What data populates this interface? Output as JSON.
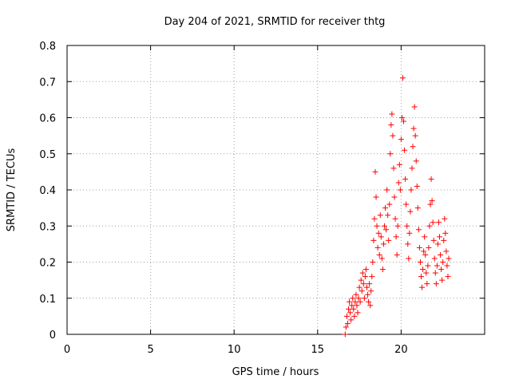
{
  "chart_data": {
    "type": "scatter",
    "title": "Day 204 of 2021, SRMTID for receiver thtg",
    "xlabel": "GPS time / hours",
    "ylabel": "SRMTID / TECUs",
    "xlim": [
      0,
      25
    ],
    "ylim": [
      0,
      0.8
    ],
    "grid": true,
    "marker": "+",
    "color": "#ff0000",
    "x_ticks": [
      0,
      5,
      10,
      15,
      20
    ],
    "x_tick_labels": [
      "0",
      "5",
      "10",
      "15",
      "20"
    ],
    "y_ticks": [
      0,
      0.1,
      0.2,
      0.3,
      0.4,
      0.5,
      0.6,
      0.7,
      0.8
    ],
    "y_tick_labels": [
      "0",
      "0.1",
      "0.2",
      "0.3",
      "0.4",
      "0.5",
      "0.6",
      "0.7",
      "0.8"
    ],
    "series": [
      {
        "name": "SRMTID",
        "points": [
          [
            16.65,
            0.0
          ],
          [
            16.7,
            0.02
          ],
          [
            16.75,
            0.05
          ],
          [
            16.8,
            0.03
          ],
          [
            16.85,
            0.07
          ],
          [
            16.9,
            0.09
          ],
          [
            16.95,
            0.06
          ],
          [
            17.0,
            0.04
          ],
          [
            17.05,
            0.08
          ],
          [
            17.1,
            0.1
          ],
          [
            17.15,
            0.07
          ],
          [
            17.2,
            0.05
          ],
          [
            17.25,
            0.09
          ],
          [
            17.3,
            0.11
          ],
          [
            17.35,
            0.08
          ],
          [
            17.4,
            0.06
          ],
          [
            17.45,
            0.1
          ],
          [
            17.5,
            0.13
          ],
          [
            17.55,
            0.09
          ],
          [
            17.6,
            0.15
          ],
          [
            17.65,
            0.12
          ],
          [
            17.7,
            0.17
          ],
          [
            17.75,
            0.14
          ],
          [
            17.8,
            0.1
          ],
          [
            17.85,
            0.16
          ],
          [
            17.9,
            0.18
          ],
          [
            17.95,
            0.13
          ],
          [
            18.0,
            0.11
          ],
          [
            18.05,
            0.09
          ],
          [
            18.1,
            0.14
          ],
          [
            18.15,
            0.08
          ],
          [
            18.2,
            0.12
          ],
          [
            18.25,
            0.16
          ],
          [
            18.3,
            0.2
          ],
          [
            18.35,
            0.26
          ],
          [
            18.4,
            0.32
          ],
          [
            18.45,
            0.45
          ],
          [
            18.5,
            0.38
          ],
          [
            18.55,
            0.3
          ],
          [
            18.6,
            0.24
          ],
          [
            18.65,
            0.28
          ],
          [
            18.7,
            0.22
          ],
          [
            18.75,
            0.33
          ],
          [
            18.8,
            0.27
          ],
          [
            18.85,
            0.21
          ],
          [
            18.9,
            0.18
          ],
          [
            18.95,
            0.25
          ],
          [
            19.0,
            0.3
          ],
          [
            19.05,
            0.35
          ],
          [
            19.1,
            0.29
          ],
          [
            19.15,
            0.4
          ],
          [
            19.2,
            0.33
          ],
          [
            19.25,
            0.26
          ],
          [
            19.3,
            0.36
          ],
          [
            19.35,
            0.5
          ],
          [
            19.4,
            0.58
          ],
          [
            19.45,
            0.61
          ],
          [
            19.5,
            0.55
          ],
          [
            19.55,
            0.46
          ],
          [
            19.6,
            0.38
          ],
          [
            19.65,
            0.32
          ],
          [
            19.7,
            0.27
          ],
          [
            19.75,
            0.22
          ],
          [
            19.8,
            0.3
          ],
          [
            19.85,
            0.42
          ],
          [
            19.9,
            0.47
          ],
          [
            19.95,
            0.4
          ],
          [
            20.0,
            0.54
          ],
          [
            20.05,
            0.6
          ],
          [
            20.1,
            0.71
          ],
          [
            20.15,
            0.59
          ],
          [
            20.2,
            0.51
          ],
          [
            20.25,
            0.43
          ],
          [
            20.3,
            0.36
          ],
          [
            20.35,
            0.3
          ],
          [
            20.4,
            0.25
          ],
          [
            20.45,
            0.21
          ],
          [
            20.5,
            0.28
          ],
          [
            20.55,
            0.34
          ],
          [
            20.6,
            0.4
          ],
          [
            20.65,
            0.46
          ],
          [
            20.7,
            0.52
          ],
          [
            20.75,
            0.57
          ],
          [
            20.8,
            0.63
          ],
          [
            20.85,
            0.55
          ],
          [
            20.9,
            0.48
          ],
          [
            20.95,
            0.41
          ],
          [
            21.0,
            0.35
          ],
          [
            21.05,
            0.29
          ],
          [
            21.1,
            0.24
          ],
          [
            21.15,
            0.2
          ],
          [
            21.2,
            0.16
          ],
          [
            21.25,
            0.13
          ],
          [
            21.3,
            0.18
          ],
          [
            21.35,
            0.23
          ],
          [
            21.4,
            0.27
          ],
          [
            21.45,
            0.22
          ],
          [
            21.5,
            0.17
          ],
          [
            21.55,
            0.14
          ],
          [
            21.6,
            0.19
          ],
          [
            21.65,
            0.24
          ],
          [
            21.7,
            0.3
          ],
          [
            21.75,
            0.36
          ],
          [
            21.8,
            0.43
          ],
          [
            21.85,
            0.37
          ],
          [
            21.9,
            0.31
          ],
          [
            21.95,
            0.26
          ],
          [
            22.0,
            0.21
          ],
          [
            22.05,
            0.17
          ],
          [
            22.1,
            0.14
          ],
          [
            22.15,
            0.19
          ],
          [
            22.2,
            0.25
          ],
          [
            22.25,
            0.31
          ],
          [
            22.3,
            0.27
          ],
          [
            22.35,
            0.22
          ],
          [
            22.4,
            0.18
          ],
          [
            22.45,
            0.15
          ],
          [
            22.5,
            0.2
          ],
          [
            22.55,
            0.26
          ],
          [
            22.6,
            0.32
          ],
          [
            22.65,
            0.28
          ],
          [
            22.7,
            0.23
          ],
          [
            22.75,
            0.19
          ],
          [
            22.8,
            0.16
          ],
          [
            22.85,
            0.21
          ]
        ]
      }
    ]
  }
}
